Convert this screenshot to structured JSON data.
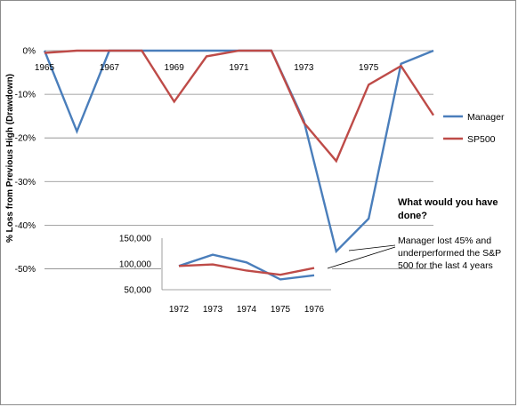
{
  "chart_data": [
    {
      "type": "line",
      "ylabel": "% Loss from Previous High (Drawdown)",
      "ylim": [
        -0.55,
        0
      ],
      "yticks": [
        {
          "value": 0,
          "label": "0%"
        },
        {
          "value": -0.1,
          "label": "-10%"
        },
        {
          "value": -0.2,
          "label": "-20%"
        },
        {
          "value": -0.3,
          "label": "-30%"
        },
        {
          "value": -0.4,
          "label": "-40%"
        },
        {
          "value": -0.5,
          "label": "-50%"
        }
      ],
      "xlim": [
        1965,
        1977
      ],
      "xticks": [
        {
          "value": 1965,
          "label": "1965"
        },
        {
          "value": 1967,
          "label": "1967"
        },
        {
          "value": 1969,
          "label": "1969"
        },
        {
          "value": 1971,
          "label": "1971"
        },
        {
          "value": 1973,
          "label": "1973"
        },
        {
          "value": 1975,
          "label": "1975"
        }
      ],
      "grid": true,
      "legend": "right",
      "series": [
        {
          "name": "Manager",
          "color": "#4a7ebb",
          "x": [
            1965,
            1966,
            1967,
            1968,
            1969,
            1970,
            1971,
            1972,
            1973,
            1974,
            1975,
            1976,
            1977
          ],
          "y": [
            0,
            -0.185,
            0,
            0,
            0,
            0,
            0,
            0,
            -0.16,
            -0.46,
            -0.385,
            -0.03,
            0
          ]
        },
        {
          "name": "SP500",
          "color": "#be4b48",
          "x": [
            1965,
            1966,
            1967,
            1968,
            1969,
            1970,
            1971,
            1972,
            1973,
            1974,
            1975,
            1976,
            1977
          ],
          "y": [
            -0.005,
            0,
            0,
            0,
            -0.117,
            -0.013,
            0,
            0,
            -0.165,
            -0.253,
            -0.078,
            -0.035,
            -0.148
          ]
        }
      ]
    },
    {
      "type": "line",
      "ylim": [
        50000,
        150000
      ],
      "yticks": [
        {
          "value": 150000,
          "label": "150,000"
        },
        {
          "value": 100000,
          "label": "100,000"
        },
        {
          "value": 50000,
          "label": "50,000"
        }
      ],
      "categories": [
        "1972",
        "1973",
        "1974",
        "1975",
        "1976"
      ],
      "series": [
        {
          "name": "Manager",
          "color": "#4a7ebb",
          "values": [
            96000,
            118000,
            103000,
            70000,
            78000
          ]
        },
        {
          "name": "SP500",
          "color": "#be4b48",
          "values": [
            96000,
            99000,
            87000,
            79000,
            92000
          ]
        }
      ]
    }
  ],
  "annotation": {
    "title_lines": [
      "What would you have",
      "done?"
    ],
    "text_lines": [
      "Manager lost 45% and",
      "underperformed the S&P",
      "500 for the last 4 years"
    ]
  }
}
